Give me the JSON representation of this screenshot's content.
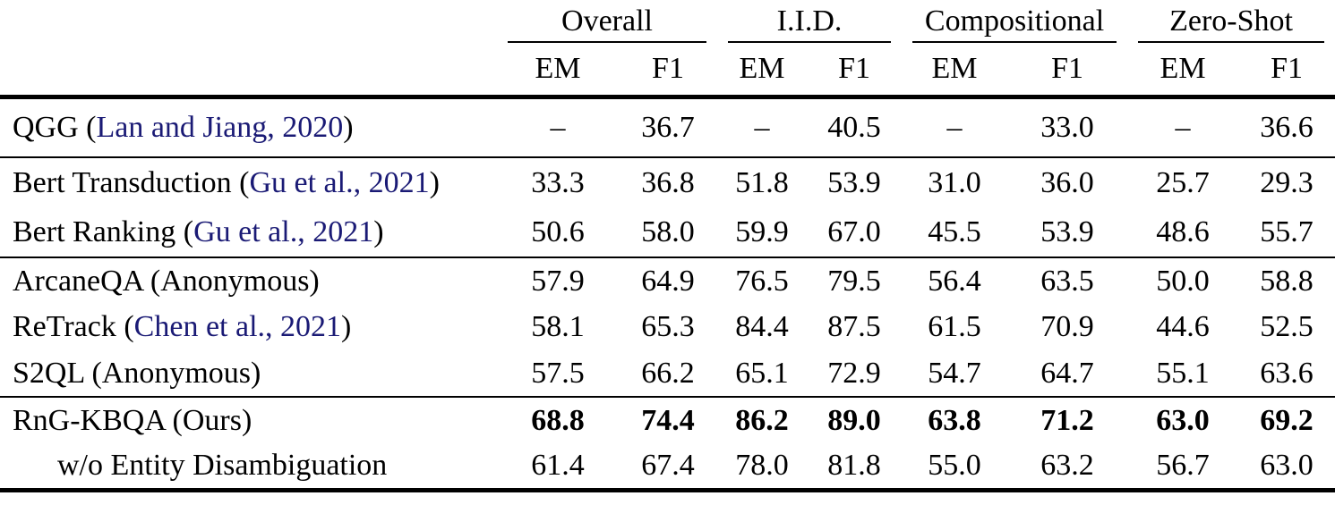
{
  "table": {
    "header": {
      "groups": [
        {
          "label": "Overall"
        },
        {
          "label": "I.I.D."
        },
        {
          "label": "Compositional"
        },
        {
          "label": "Zero-Shot"
        }
      ],
      "metric_labels": [
        "EM",
        "F1",
        "EM",
        "F1",
        "EM",
        "F1",
        "EM",
        "F1"
      ]
    },
    "sections": [
      {
        "rows": [
          {
            "label_prefix": "QGG (",
            "citation": "Lan and Jiang, 2020",
            "label_suffix": ")",
            "indent": false,
            "bold_values": false,
            "values": [
              "–",
              "36.7",
              "–",
              "40.5",
              "–",
              "33.0",
              "–",
              "36.6"
            ]
          }
        ]
      },
      {
        "rows": [
          {
            "label_prefix": "Bert Transduction (",
            "citation": "Gu et al., 2021",
            "label_suffix": ")",
            "indent": false,
            "bold_values": false,
            "values": [
              "33.3",
              "36.8",
              "51.8",
              "53.9",
              "31.0",
              "36.0",
              "25.7",
              "29.3"
            ]
          },
          {
            "label_prefix": "Bert Ranking (",
            "citation": "Gu et al., 2021",
            "label_suffix": ")",
            "indent": false,
            "bold_values": false,
            "values": [
              "50.6",
              "58.0",
              "59.9",
              "67.0",
              "45.5",
              "53.9",
              "48.6",
              "55.7"
            ]
          }
        ]
      },
      {
        "rows": [
          {
            "label_prefix": "ArcaneQA (Anonymous)",
            "citation": "",
            "label_suffix": "",
            "indent": false,
            "bold_values": false,
            "values": [
              "57.9",
              "64.9",
              "76.5",
              "79.5",
              "56.4",
              "63.5",
              "50.0",
              "58.8"
            ]
          },
          {
            "label_prefix": "ReTrack (",
            "citation": "Chen et al., 2021",
            "label_suffix": ")",
            "indent": false,
            "bold_values": false,
            "values": [
              "58.1",
              "65.3",
              "84.4",
              "87.5",
              "61.5",
              "70.9",
              "44.6",
              "52.5"
            ]
          },
          {
            "label_prefix": "S2QL (Anonymous)",
            "citation": "",
            "label_suffix": "",
            "indent": false,
            "bold_values": false,
            "values": [
              "57.5",
              "66.2",
              "65.1",
              "72.9",
              "54.7",
              "64.7",
              "55.1",
              "63.6"
            ]
          }
        ]
      },
      {
        "rows": [
          {
            "label_prefix": "RnG-KBQA (Ours)",
            "citation": "",
            "label_suffix": "",
            "indent": false,
            "bold_values": true,
            "values": [
              "68.8",
              "74.4",
              "86.2",
              "89.0",
              "63.8",
              "71.2",
              "63.0",
              "69.2"
            ]
          },
          {
            "label_prefix": "w/o Entity Disambiguation",
            "citation": "",
            "label_suffix": "",
            "indent": true,
            "bold_values": false,
            "values": [
              "61.4",
              "67.4",
              "78.0",
              "81.8",
              "55.0",
              "63.2",
              "56.7",
              "63.0"
            ]
          }
        ]
      }
    ],
    "colors": {
      "citation_link": "#1a1a75",
      "text": "#000000",
      "rule": "#000000",
      "background": "#ffffff"
    }
  }
}
